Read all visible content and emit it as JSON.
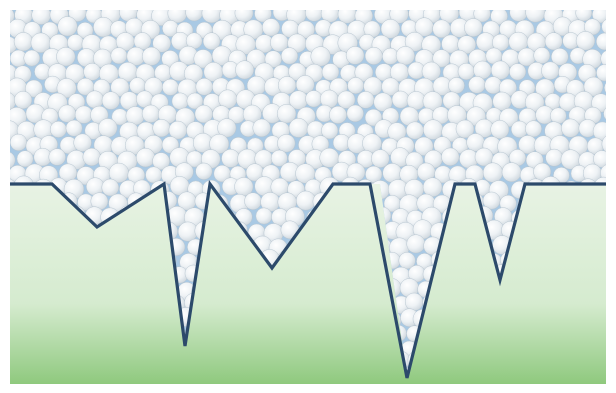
{
  "diagram": {
    "colors": {
      "background": "#ffffff",
      "fill_top": "#d7e7f3",
      "fill_edge": "#a9c9e4",
      "sphere_light": "#ffffff",
      "sphere_mid": "#eef2f5",
      "sphere_dark": "#cdd6dd",
      "sphere_stroke": "#b7c5d0",
      "substrate_top": "#e8f3e4",
      "substrate_mid": "#d5ebcf",
      "substrate_bottom": "#8fc97e",
      "surface_line": "#2c4a6b"
    }
  }
}
